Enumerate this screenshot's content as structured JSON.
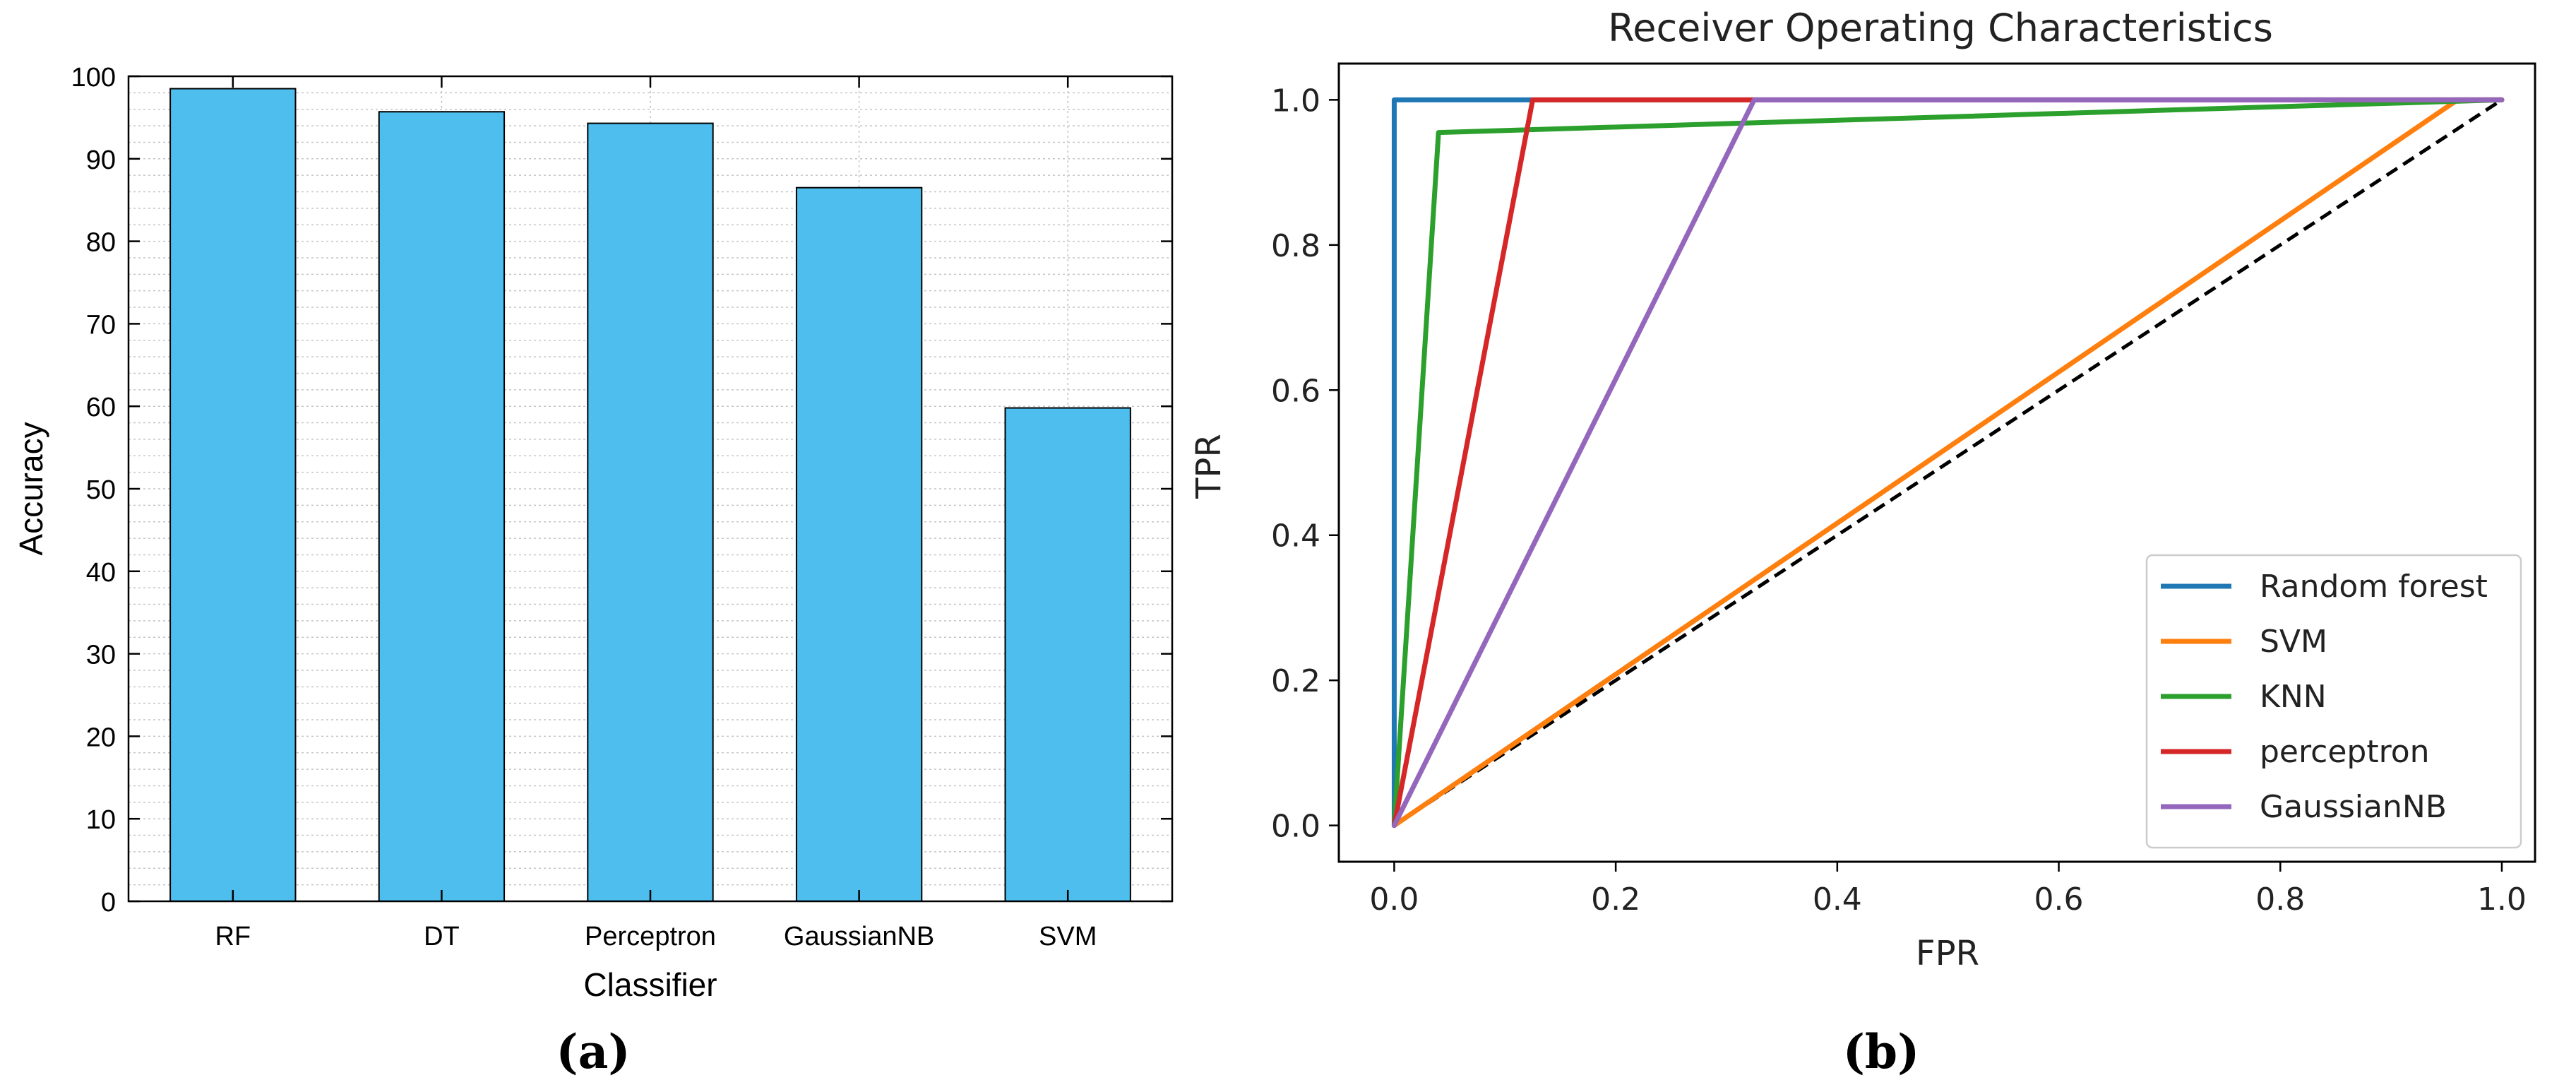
{
  "panels": {
    "a": "(a)",
    "b": "(b)"
  },
  "chart_data": [
    {
      "type": "bar",
      "title": "",
      "xlabel": "Classifier",
      "ylabel": "Accuracy",
      "categories": [
        "RF",
        "DT",
        "Perceptron",
        "GaussianNB",
        "SVM"
      ],
      "values": [
        98.5,
        95.7,
        94.3,
        86.5,
        59.8
      ],
      "ylim": [
        0,
        100
      ],
      "yticks": [
        "0",
        "10",
        "20",
        "30",
        "40",
        "50",
        "60",
        "70",
        "80",
        "90",
        "100"
      ],
      "grid": true,
      "bar_color": "#4dbeed",
      "edge_color": "#000000"
    },
    {
      "type": "line",
      "title": "Receiver Operating Characteristics",
      "xlabel": "FPR",
      "ylabel": "TPR",
      "xlim": [
        -0.05,
        1.03
      ],
      "ylim": [
        -0.05,
        1.05
      ],
      "xticks": [
        "0.0",
        "0.2",
        "0.4",
        "0.6",
        "0.8",
        "1.0"
      ],
      "yticks": [
        "0.0",
        "0.2",
        "0.4",
        "0.6",
        "0.8",
        "1.0"
      ],
      "grid": false,
      "legend_position": "bottom-right",
      "series": [
        {
          "name": "Random forest",
          "color": "#1f77b4",
          "x": [
            0,
            0,
            1.0
          ],
          "y": [
            0,
            1.0,
            1.0
          ]
        },
        {
          "name": "SVM",
          "color": "#ff7f0e",
          "x": [
            0,
            0.96,
            1.0
          ],
          "y": [
            0,
            1.0,
            1.0
          ]
        },
        {
          "name": "KNN",
          "color": "#2ca02c",
          "x": [
            0,
            0.04,
            1.0
          ],
          "y": [
            0,
            0.955,
            1.0
          ]
        },
        {
          "name": "perceptron",
          "color": "#d62728",
          "x": [
            0,
            0.125,
            1.0
          ],
          "y": [
            0,
            1.0,
            1.0
          ]
        },
        {
          "name": "GaussianNB",
          "color": "#9467bd",
          "x": [
            0,
            0.325,
            1.0
          ],
          "y": [
            0,
            1.0,
            1.0
          ]
        }
      ],
      "diagonal": {
        "x": [
          0,
          1
        ],
        "y": [
          0,
          1
        ],
        "color": "#000000",
        "style": "dashed"
      }
    }
  ]
}
